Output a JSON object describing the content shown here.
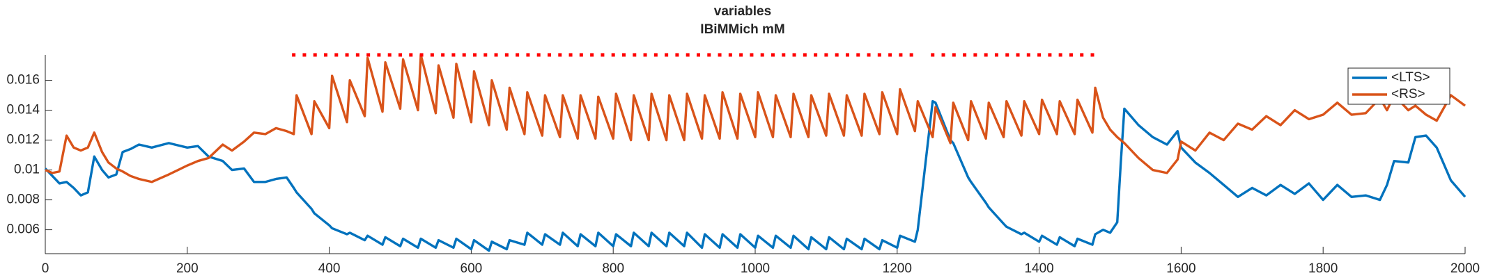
{
  "chart_data": {
    "type": "line",
    "title": "variables",
    "subtitle": "IBiMMich mM",
    "xlim": [
      0,
      2000
    ],
    "xticks": [
      0,
      200,
      400,
      600,
      800,
      1000,
      1200,
      1400,
      1600,
      1800,
      2000
    ],
    "ylim": [
      0.0044,
      0.0177
    ],
    "yticks": [
      0.006,
      0.008,
      0.01,
      0.012,
      0.014,
      0.016
    ],
    "grid": false,
    "legend": "top-right",
    "x": [
      0,
      10,
      20,
      30,
      40,
      50,
      60,
      69,
      80,
      89,
      100,
      109,
      120,
      132,
      150,
      174,
      200,
      215,
      230,
      250,
      263,
      280,
      294,
      310,
      325,
      340,
      350,
      354,
      375,
      379,
      400,
      404,
      425,
      429,
      450,
      454,
      475,
      479,
      500,
      504,
      525,
      529,
      550,
      554,
      575,
      579,
      600,
      604,
      625,
      629,
      650,
      654,
      675,
      679,
      700,
      704,
      725,
      729,
      750,
      754,
      775,
      779,
      800,
      804,
      825,
      829,
      850,
      854,
      875,
      879,
      900,
      904,
      925,
      929,
      950,
      954,
      975,
      979,
      1000,
      1004,
      1025,
      1029,
      1050,
      1054,
      1075,
      1079,
      1100,
      1104,
      1125,
      1129,
      1150,
      1154,
      1175,
      1179,
      1200,
      1204,
      1225,
      1229,
      1250,
      1254,
      1275,
      1279,
      1300,
      1304,
      1325,
      1329,
      1350,
      1354,
      1375,
      1379,
      1400,
      1404,
      1425,
      1429,
      1450,
      1454,
      1475,
      1479,
      1490,
      1500,
      1510,
      1515,
      1520,
      1540,
      1560,
      1580,
      1595,
      1600,
      1620,
      1640,
      1660,
      1680,
      1700,
      1720,
      1740,
      1760,
      1780,
      1800,
      1820,
      1840,
      1860,
      1880,
      1890,
      1900,
      1920,
      1930,
      1945,
      1960,
      1980,
      2000
    ],
    "series": [
      {
        "name": "<LTS>",
        "color": "#0072bd",
        "values": [
          0.0101,
          0.0096,
          0.0091,
          0.0092,
          0.0088,
          0.0083,
          0.0085,
          0.0109,
          0.01,
          0.0095,
          0.0097,
          0.0112,
          0.0114,
          0.0117,
          0.0115,
          0.0118,
          0.0115,
          0.0116,
          0.0109,
          0.0106,
          0.01,
          0.0101,
          0.0092,
          0.0092,
          0.0094,
          0.0095,
          0.0088,
          0.0085,
          0.0074,
          0.0071,
          0.0063,
          0.0061,
          0.0057,
          0.0058,
          0.0053,
          0.0056,
          0.005,
          0.0055,
          0.0049,
          0.0054,
          0.0048,
          0.0054,
          0.0048,
          0.0053,
          0.0048,
          0.0054,
          0.0047,
          0.0053,
          0.0046,
          0.0052,
          0.0047,
          0.0053,
          0.005,
          0.0058,
          0.005,
          0.0057,
          0.005,
          0.0058,
          0.0049,
          0.0057,
          0.0049,
          0.0058,
          0.0049,
          0.0057,
          0.0049,
          0.0058,
          0.0049,
          0.0058,
          0.0049,
          0.0058,
          0.0049,
          0.0058,
          0.0048,
          0.0057,
          0.0048,
          0.0057,
          0.0048,
          0.0057,
          0.0048,
          0.0056,
          0.0048,
          0.0056,
          0.0048,
          0.0056,
          0.0047,
          0.0055,
          0.0047,
          0.0055,
          0.0047,
          0.0054,
          0.0047,
          0.0054,
          0.0047,
          0.0053,
          0.0048,
          0.0056,
          0.0052,
          0.006,
          0.0146,
          0.0145,
          0.012,
          0.0118,
          0.0095,
          0.0092,
          0.0078,
          0.0075,
          0.0064,
          0.0062,
          0.0057,
          0.0058,
          0.0052,
          0.0056,
          0.005,
          0.0055,
          0.0049,
          0.0054,
          0.005,
          0.0057,
          0.006,
          0.0058,
          0.0065,
          0.0105,
          0.0141,
          0.013,
          0.0122,
          0.0117,
          0.0126,
          0.0115,
          0.0105,
          0.0098,
          0.009,
          0.0082,
          0.0088,
          0.0083,
          0.009,
          0.0084,
          0.0091,
          0.008,
          0.009,
          0.0082,
          0.0083,
          0.008,
          0.009,
          0.0106,
          0.0105,
          0.0122,
          0.0123,
          0.0115,
          0.0093,
          0.0082
        ]
      },
      {
        "name": "<RS>",
        "color": "#d95319",
        "values": [
          0.01,
          0.0098,
          0.0099,
          0.0123,
          0.0115,
          0.0113,
          0.0115,
          0.0125,
          0.0112,
          0.0105,
          0.0101,
          0.0099,
          0.0096,
          0.0094,
          0.0092,
          0.0097,
          0.0103,
          0.0106,
          0.0108,
          0.0117,
          0.0113,
          0.0119,
          0.0125,
          0.0124,
          0.0128,
          0.0126,
          0.0124,
          0.015,
          0.0124,
          0.0146,
          0.0128,
          0.0163,
          0.0132,
          0.016,
          0.0136,
          0.0175,
          0.0139,
          0.0172,
          0.0141,
          0.0174,
          0.014,
          0.0177,
          0.0138,
          0.017,
          0.0135,
          0.0171,
          0.0132,
          0.0166,
          0.013,
          0.016,
          0.0127,
          0.0155,
          0.0124,
          0.0152,
          0.0123,
          0.015,
          0.0122,
          0.015,
          0.0121,
          0.015,
          0.0121,
          0.0149,
          0.0121,
          0.0151,
          0.012,
          0.015,
          0.012,
          0.0151,
          0.012,
          0.015,
          0.012,
          0.0151,
          0.0121,
          0.015,
          0.0121,
          0.0152,
          0.0121,
          0.0151,
          0.0122,
          0.0152,
          0.0122,
          0.015,
          0.0122,
          0.0151,
          0.0122,
          0.015,
          0.0123,
          0.0151,
          0.0123,
          0.015,
          0.0123,
          0.0151,
          0.0124,
          0.0152,
          0.0124,
          0.0154,
          0.0126,
          0.0146,
          0.0122,
          0.0142,
          0.0118,
          0.0145,
          0.012,
          0.0146,
          0.0121,
          0.0145,
          0.0122,
          0.0146,
          0.0123,
          0.0146,
          0.0124,
          0.0147,
          0.0124,
          0.0146,
          0.0124,
          0.0147,
          0.0125,
          0.0155,
          0.0135,
          0.0127,
          0.0122,
          0.012,
          0.0118,
          0.0108,
          0.01,
          0.0098,
          0.0107,
          0.0119,
          0.0113,
          0.0125,
          0.012,
          0.0131,
          0.0127,
          0.0136,
          0.013,
          0.014,
          0.0134,
          0.0137,
          0.0145,
          0.0137,
          0.0138,
          0.0148,
          0.014,
          0.015,
          0.014,
          0.0143,
          0.0137,
          0.0133,
          0.015,
          0.0143
        ]
      }
    ],
    "markers": {
      "color": "#ff0000",
      "y": 0.0177,
      "x": [
        350,
        365,
        380,
        395,
        410,
        425,
        440,
        455,
        470,
        485,
        500,
        515,
        530,
        545,
        560,
        575,
        590,
        605,
        620,
        635,
        650,
        665,
        680,
        695,
        710,
        725,
        740,
        755,
        770,
        785,
        800,
        815,
        830,
        845,
        860,
        875,
        890,
        905,
        920,
        935,
        950,
        965,
        980,
        995,
        1010,
        1025,
        1040,
        1055,
        1070,
        1085,
        1100,
        1115,
        1130,
        1145,
        1160,
        1175,
        1190,
        1205,
        1220,
        1250,
        1265,
        1280,
        1295,
        1310,
        1325,
        1340,
        1355,
        1370,
        1385,
        1400,
        1415,
        1430,
        1445,
        1460,
        1475
      ]
    }
  }
}
